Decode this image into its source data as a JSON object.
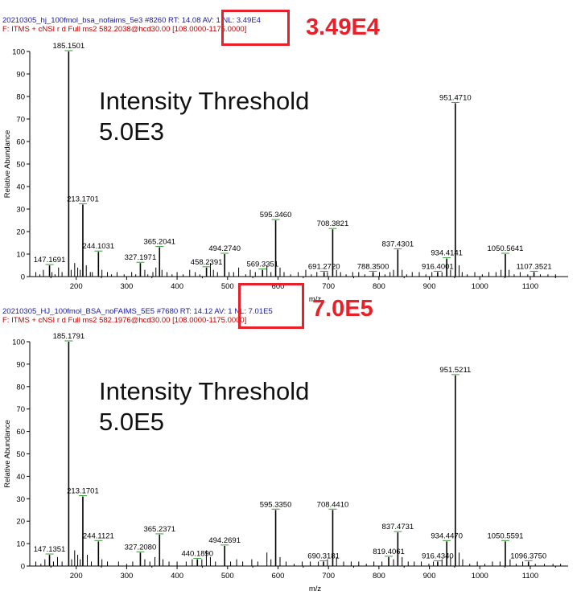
{
  "chart_data": [
    {
      "type": "bar",
      "header_line1": "20210305_hj_100fmol_bsa_nofaims_5e3 #8260  RT: 14.08  AV: 1  NL: 3.49E4",
      "header_line2": "F: ITMS + cNSI r d Full ms2 582.2038@hcd30.00 [108.0000-1175.0000]",
      "nl_callout": "3.49E4",
      "threshold_label": "Intensity Threshold",
      "threshold_value": "5.0E3",
      "xlabel": "m/z",
      "ylabel": "Relative Abundance",
      "xlim": [
        108,
        1175
      ],
      "ylim": [
        0,
        100
      ],
      "xticks": [
        "200",
        "300",
        "400",
        "500",
        "600",
        "700",
        "800",
        "900",
        "1000",
        "1100"
      ],
      "yticks": [
        "0",
        "10",
        "20",
        "30",
        "40",
        "50",
        "60",
        "70",
        "80",
        "90",
        "100"
      ],
      "labeled_peaks": [
        {
          "mz": 147.1691,
          "intensity": 5,
          "label": "147.1691"
        },
        {
          "mz": 185.1501,
          "intensity": 100,
          "label": "185.1501"
        },
        {
          "mz": 213.1701,
          "intensity": 32,
          "label": "213.1701"
        },
        {
          "mz": 244.1031,
          "intensity": 11,
          "label": "244.1031"
        },
        {
          "mz": 327.1971,
          "intensity": 6,
          "label": "327.1971"
        },
        {
          "mz": 365.2041,
          "intensity": 13,
          "label": "365.2041"
        },
        {
          "mz": 458.2391,
          "intensity": 4,
          "label": "458.2391"
        },
        {
          "mz": 494.274,
          "intensity": 10,
          "label": "494.2740"
        },
        {
          "mz": 569.3351,
          "intensity": 3,
          "label": "569.3351"
        },
        {
          "mz": 595.346,
          "intensity": 25,
          "label": "595.3460"
        },
        {
          "mz": 691.272,
          "intensity": 2,
          "label": "691.2720"
        },
        {
          "mz": 708.3821,
          "intensity": 21,
          "label": "708.3821"
        },
        {
          "mz": 788.35,
          "intensity": 2,
          "label": "788.3500"
        },
        {
          "mz": 837.4301,
          "intensity": 12,
          "label": "837.4301"
        },
        {
          "mz": 916.4001,
          "intensity": 2,
          "label": "916.4001"
        },
        {
          "mz": 934.4141,
          "intensity": 8,
          "label": "934.4141"
        },
        {
          "mz": 951.471,
          "intensity": 77,
          "label": "951.4710"
        },
        {
          "mz": 1050.5641,
          "intensity": 10,
          "label": "1050.5641"
        },
        {
          "mz": 1107.3521,
          "intensity": 2,
          "label": "1107.3521"
        }
      ],
      "minor_peaks": [
        [
          120,
          2
        ],
        [
          128,
          1
        ],
        [
          135,
          3
        ],
        [
          152,
          2
        ],
        [
          158,
          1
        ],
        [
          165,
          4
        ],
        [
          172,
          2
        ],
        [
          190,
          3
        ],
        [
          197,
          6
        ],
        [
          203,
          4
        ],
        [
          208,
          3
        ],
        [
          220,
          5
        ],
        [
          228,
          2
        ],
        [
          232,
          2
        ],
        [
          251,
          3
        ],
        [
          262,
          2
        ],
        [
          270,
          1
        ],
        [
          281,
          2
        ],
        [
          295,
          1
        ],
        [
          310,
          2
        ],
        [
          318,
          1
        ],
        [
          336,
          3
        ],
        [
          342,
          1
        ],
        [
          352,
          2
        ],
        [
          358,
          4
        ],
        [
          370,
          3
        ],
        [
          380,
          2
        ],
        [
          390,
          1
        ],
        [
          400,
          2
        ],
        [
          412,
          1
        ],
        [
          425,
          3
        ],
        [
          436,
          2
        ],
        [
          445,
          1
        ],
        [
          466,
          6
        ],
        [
          472,
          3
        ],
        [
          480,
          2
        ],
        [
          503,
          2
        ],
        [
          512,
          2
        ],
        [
          522,
          4
        ],
        [
          536,
          1
        ],
        [
          545,
          3
        ],
        [
          555,
          2
        ],
        [
          578,
          5
        ],
        [
          586,
          2
        ],
        [
          604,
          4
        ],
        [
          612,
          2
        ],
        [
          625,
          1
        ],
        [
          640,
          2
        ],
        [
          655,
          3
        ],
        [
          666,
          1
        ],
        [
          677,
          2
        ],
        [
          698,
          2
        ],
        [
          716,
          3
        ],
        [
          724,
          2
        ],
        [
          735,
          1
        ],
        [
          748,
          2
        ],
        [
          760,
          2
        ],
        [
          772,
          1
        ],
        [
          801,
          2
        ],
        [
          812,
          1
        ],
        [
          822,
          2
        ],
        [
          829,
          3
        ],
        [
          846,
          3
        ],
        [
          855,
          1
        ],
        [
          866,
          2
        ],
        [
          880,
          2
        ],
        [
          893,
          1
        ],
        [
          905,
          2
        ],
        [
          925,
          2
        ],
        [
          942,
          3
        ],
        [
          959,
          5
        ],
        [
          965,
          2
        ],
        [
          975,
          1
        ],
        [
          990,
          2
        ],
        [
          1005,
          1
        ],
        [
          1018,
          2
        ],
        [
          1032,
          2
        ],
        [
          1042,
          3
        ],
        [
          1058,
          3
        ],
        [
          1068,
          1
        ],
        [
          1080,
          2
        ],
        [
          1095,
          1
        ],
        [
          1120,
          1
        ],
        [
          1135,
          1
        ],
        [
          1150,
          1
        ]
      ]
    },
    {
      "type": "bar",
      "header_line1": "20210305_HJ_100fmol_BSA_noFAIMS_5E5 #7680  RT: 14.12  AV: 1  NL: 7.01E5",
      "header_line2": "F: ITMS + cNSI r d Full ms2 582.1976@hcd30.00 [108.0000-1175.0000]",
      "nl_callout": "7.0E5",
      "threshold_label": "Intensity Threshold",
      "threshold_value": "5.0E5",
      "xlabel": "m/z",
      "ylabel": "Relative Abundance",
      "xlim": [
        108,
        1175
      ],
      "ylim": [
        0,
        100
      ],
      "xticks": [
        "200",
        "300",
        "400",
        "500",
        "600",
        "700",
        "800",
        "900",
        "1000",
        "1100"
      ],
      "yticks": [
        "0",
        "10",
        "20",
        "30",
        "40",
        "50",
        "60",
        "70",
        "80",
        "90",
        "100"
      ],
      "labeled_peaks": [
        {
          "mz": 147.1351,
          "intensity": 5,
          "label": "147.1351"
        },
        {
          "mz": 185.1791,
          "intensity": 100,
          "label": "185.1791"
        },
        {
          "mz": 213.1701,
          "intensity": 31,
          "label": "213.1701"
        },
        {
          "mz": 244.1121,
          "intensity": 11,
          "label": "244.1121"
        },
        {
          "mz": 327.208,
          "intensity": 6,
          "label": "327.2080"
        },
        {
          "mz": 365.2371,
          "intensity": 14,
          "label": "365.2371"
        },
        {
          "mz": 440.189,
          "intensity": 3,
          "label": "440.1890"
        },
        {
          "mz": 494.2691,
          "intensity": 9,
          "label": "494.2691"
        },
        {
          "mz": 595.335,
          "intensity": 25,
          "label": "595.3350"
        },
        {
          "mz": 690.3181,
          "intensity": 2,
          "label": "690.3181"
        },
        {
          "mz": 708.441,
          "intensity": 25,
          "label": "708.4410"
        },
        {
          "mz": 819.4061,
          "intensity": 4,
          "label": "819.4061"
        },
        {
          "mz": 837.4731,
          "intensity": 15,
          "label": "837.4731"
        },
        {
          "mz": 916.434,
          "intensity": 2,
          "label": "916.4340"
        },
        {
          "mz": 934.447,
          "intensity": 11,
          "label": "934.4470"
        },
        {
          "mz": 951.5211,
          "intensity": 85,
          "label": "951.5211"
        },
        {
          "mz": 1050.5591,
          "intensity": 11,
          "label": "1050.5591"
        },
        {
          "mz": 1096.375,
          "intensity": 2,
          "label": "1096.3750"
        }
      ],
      "minor_peaks": [
        [
          120,
          2
        ],
        [
          130,
          1
        ],
        [
          138,
          3
        ],
        [
          155,
          2
        ],
        [
          163,
          4
        ],
        [
          172,
          2
        ],
        [
          191,
          3
        ],
        [
          197,
          7
        ],
        [
          203,
          5
        ],
        [
          208,
          3
        ],
        [
          222,
          5
        ],
        [
          230,
          2
        ],
        [
          251,
          3
        ],
        [
          262,
          2
        ],
        [
          284,
          2
        ],
        [
          300,
          1
        ],
        [
          312,
          2
        ],
        [
          336,
          3
        ],
        [
          346,
          2
        ],
        [
          356,
          4
        ],
        [
          372,
          3
        ],
        [
          384,
          2
        ],
        [
          400,
          2
        ],
        [
          418,
          2
        ],
        [
          430,
          3
        ],
        [
          449,
          3
        ],
        [
          458,
          7
        ],
        [
          466,
          4
        ],
        [
          476,
          2
        ],
        [
          506,
          2
        ],
        [
          518,
          3
        ],
        [
          530,
          2
        ],
        [
          548,
          3
        ],
        [
          560,
          2
        ],
        [
          578,
          6
        ],
        [
          586,
          3
        ],
        [
          604,
          4
        ],
        [
          616,
          2
        ],
        [
          632,
          1
        ],
        [
          648,
          2
        ],
        [
          664,
          2
        ],
        [
          680,
          2
        ],
        [
          698,
          3
        ],
        [
          716,
          4
        ],
        [
          730,
          2
        ],
        [
          745,
          2
        ],
        [
          760,
          2
        ],
        [
          775,
          1
        ],
        [
          790,
          2
        ],
        [
          806,
          2
        ],
        [
          829,
          3
        ],
        [
          846,
          4
        ],
        [
          858,
          2
        ],
        [
          870,
          2
        ],
        [
          884,
          2
        ],
        [
          899,
          1
        ],
        [
          908,
          2
        ],
        [
          925,
          3
        ],
        [
          942,
          4
        ],
        [
          959,
          6
        ],
        [
          966,
          3
        ],
        [
          980,
          1
        ],
        [
          995,
          2
        ],
        [
          1010,
          1
        ],
        [
          1025,
          2
        ],
        [
          1040,
          2
        ],
        [
          1060,
          3
        ],
        [
          1072,
          1
        ],
        [
          1085,
          2
        ],
        [
          1110,
          1
        ],
        [
          1128,
          1
        ],
        [
          1145,
          1
        ],
        [
          1160,
          1
        ]
      ]
    }
  ]
}
